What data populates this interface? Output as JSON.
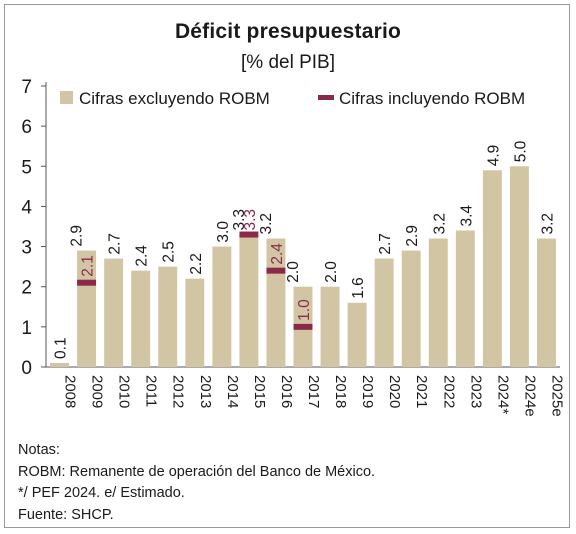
{
  "title": "Déficit presupuestario",
  "subtitle": "[% del PIB]",
  "colors": {
    "bar": "#d2c5a4",
    "marker": "#8a2a48",
    "axis": "#555555",
    "text": "#1a1a1a"
  },
  "chart_data": {
    "type": "bar",
    "categories": [
      "2008",
      "2009",
      "2010",
      "2011",
      "2012",
      "2013",
      "2014",
      "2015",
      "2016",
      "2017",
      "2018",
      "2019",
      "2020",
      "2021",
      "2022",
      "2023",
      "2024*",
      "2024e",
      "2025e"
    ],
    "series": [
      {
        "name": "Cifras excluyendo ROBM",
        "type": "bar",
        "values": [
          0.1,
          2.9,
          2.7,
          2.4,
          2.5,
          2.2,
          3.0,
          3.3,
          3.2,
          2.0,
          2.0,
          1.6,
          2.7,
          2.9,
          3.2,
          3.4,
          4.9,
          5.0,
          3.2
        ],
        "labels": [
          "0.1",
          "2.9",
          "2.7",
          "2.4",
          "2.5",
          "2.2",
          "3.0",
          "3.3",
          "3.2",
          "2.0",
          "2.0",
          "1.6",
          "2.7",
          "2.9",
          "3.2",
          "3.4",
          "4.9",
          "5.0",
          "3.2"
        ]
      },
      {
        "name": "Cifras incluyendo ROBM",
        "type": "marker",
        "values": [
          null,
          2.1,
          null,
          null,
          null,
          null,
          null,
          3.3,
          2.4,
          1.0,
          null,
          null,
          null,
          null,
          null,
          null,
          null,
          null,
          null
        ],
        "labels": [
          null,
          "2.1",
          null,
          null,
          null,
          null,
          null,
          "3.3",
          "2.4",
          "1.0",
          null,
          null,
          null,
          null,
          null,
          null,
          null,
          null,
          null
        ]
      }
    ],
    "ylim": [
      0,
      7
    ],
    "yticks": [
      "0",
      "1",
      "2",
      "3",
      "4",
      "5",
      "6",
      "7"
    ],
    "grid": false,
    "legend": "top-left"
  },
  "notes": {
    "heading": "Notas:",
    "lines": [
      "ROBM: Remanente de operación del Banco de México.",
      "*/ PEF 2024. e/ Estimado.",
      "Fuente: SHCP."
    ]
  }
}
